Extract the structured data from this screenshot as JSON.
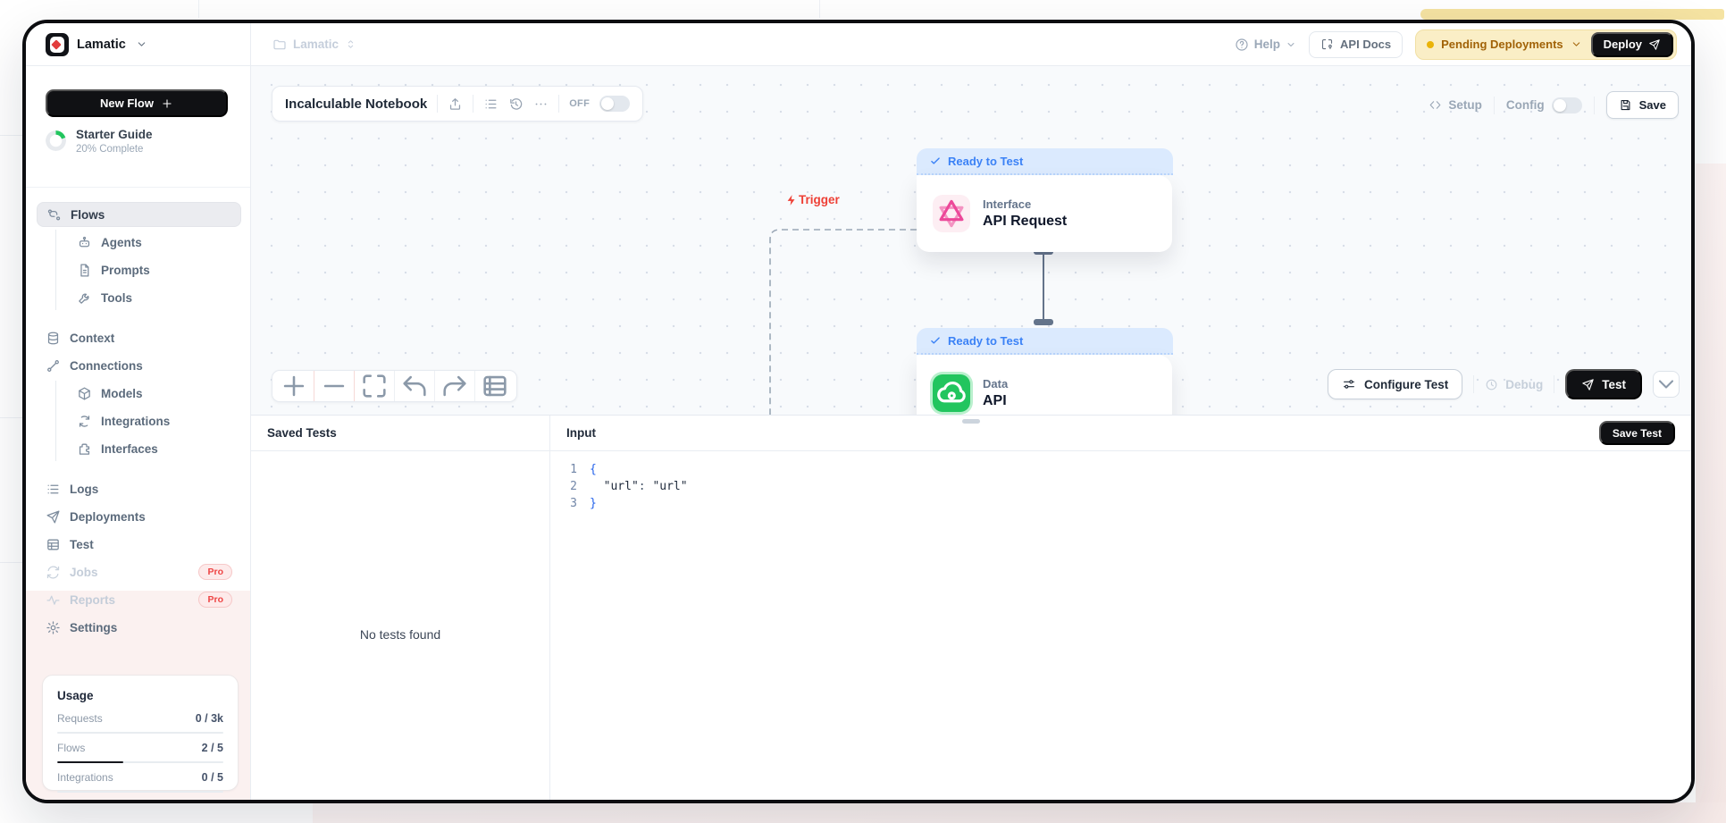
{
  "brand": {
    "name": "Lamatic"
  },
  "topbar": {
    "workspace": "Lamatic",
    "help_label": "Help",
    "api_docs_label": "API Docs",
    "pending_label": "Pending Deployments",
    "deploy_label": "Deploy"
  },
  "sidebar": {
    "new_flow_label": "New Flow",
    "starter_title": "Starter Guide",
    "starter_subtitle": "20% Complete",
    "starter_percent": 20,
    "items": [
      {
        "label": "Flows",
        "icon": "flows",
        "active": true
      },
      {
        "label": "Agents",
        "icon": "robot",
        "indent": true
      },
      {
        "label": "Prompts",
        "icon": "file",
        "indent": true
      },
      {
        "label": "Tools",
        "icon": "wrench",
        "indent": true
      },
      {
        "label": "Context",
        "icon": "database",
        "gap": true
      },
      {
        "label": "Connections",
        "icon": "link"
      },
      {
        "label": "Models",
        "icon": "cube",
        "indent": true
      },
      {
        "label": "Integrations",
        "icon": "sync",
        "indent": true
      },
      {
        "label": "Interfaces",
        "icon": "puzzle",
        "indent": true
      },
      {
        "label": "Logs",
        "icon": "list",
        "gap": true
      },
      {
        "label": "Deployments",
        "icon": "send"
      },
      {
        "label": "Test",
        "icon": "table"
      },
      {
        "label": "Jobs",
        "icon": "refresh",
        "muted": true,
        "badge": "Pro"
      },
      {
        "label": "Reports",
        "icon": "activity",
        "muted": true,
        "badge": "Pro"
      },
      {
        "label": "Settings",
        "icon": "gear"
      }
    ],
    "usage": {
      "title": "Usage",
      "rows": [
        {
          "label": "Requests",
          "value": "0 / 3k",
          "pct": 0
        },
        {
          "label": "Flows",
          "value": "2 / 5",
          "pct": 40
        },
        {
          "label": "Integrations",
          "value": "0 / 5",
          "pct": 0
        }
      ]
    }
  },
  "flow_header": {
    "title": "Incalculable Notebook",
    "off_label": "OFF"
  },
  "canvas_actions": {
    "setup": "Setup",
    "config": "Config",
    "save": "Save"
  },
  "flow": {
    "trigger_label": "Trigger",
    "nodes": [
      {
        "status": "Ready to Test",
        "category": "Interface",
        "title": "API Request",
        "icon": "graphql",
        "icon_color": "pink"
      },
      {
        "status": "Ready to Test",
        "category": "Data",
        "title": "API",
        "icon": "cloud",
        "icon_color": "green"
      }
    ]
  },
  "test_actions": {
    "configure": "Configure Test",
    "debug": "Debug",
    "test": "Test"
  },
  "test_panel": {
    "saved_title": "Saved Tests",
    "empty_text": "No tests found",
    "input_title": "Input",
    "save_test": "Save Test",
    "code_lines": [
      {
        "num": "1",
        "segments": [
          {
            "t": "{",
            "c": "brace"
          }
        ]
      },
      {
        "num": "2",
        "segments": [
          {
            "t": "  ",
            "c": "pun"
          },
          {
            "t": "\"url\"",
            "c": "str"
          },
          {
            "t": ": ",
            "c": "pun"
          },
          {
            "t": "\"url\"",
            "c": "str"
          }
        ]
      },
      {
        "num": "3",
        "segments": [
          {
            "t": "}",
            "c": "brace"
          }
        ]
      }
    ]
  },
  "colors": {
    "accent_yellow": "#eab308",
    "status_blue": "#3b82f6",
    "node_pink": "#ec4899",
    "node_green": "#22c55e",
    "danger_red": "#ef4444",
    "pro_red": "#ee4444"
  }
}
